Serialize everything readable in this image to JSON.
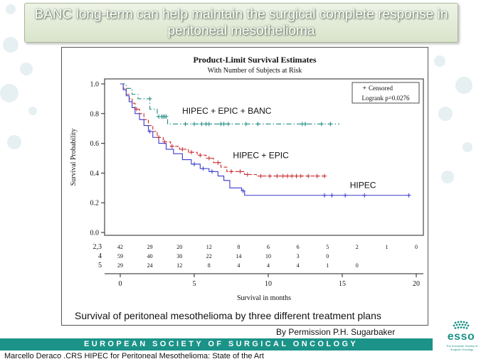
{
  "slide": {
    "title": "BANC long-term can help maintain the surgical complete response in peritoneal mesothelioma",
    "caption": "Survival of peritoneal mesothelioma by three different treatment plans",
    "permission": "By Permission P.H. Sugarbaker",
    "society_bar": "European Society of Surgical Oncology",
    "footer": "Marcello Deraco .CRS HIPEC for Peritoneal Mesothelioma: State of the Art",
    "logo": {
      "word": "esso",
      "subtitle": "The European Society of Surgical Oncology"
    }
  },
  "colors": {
    "banc": "#1f8c84",
    "epic": "#c8282d",
    "hipec": "#3a3acc",
    "accent": "#1b9388"
  },
  "chart_data": {
    "type": "line",
    "step": true,
    "title": "Product-Limit Survival Estimates",
    "subtitle": "With Number of Subjects at Risk",
    "xlabel": "Survival in months",
    "ylabel": "Survival Probability",
    "xlim": [
      0,
      20
    ],
    "ylim": [
      0,
      1
    ],
    "xticks": [
      0,
      5,
      10,
      15,
      20
    ],
    "yticks": [
      0.0,
      0.2,
      0.4,
      0.6,
      0.8,
      1.0
    ],
    "legend": {
      "symbol": "+",
      "label": "Censored",
      "stat": "Logrank p=0.0276",
      "placement": "top-right"
    },
    "series": [
      {
        "name": "HIPEC + EPIC + BANC",
        "color": "#1f8c84",
        "dash": "dash-dot",
        "steps": [
          [
            0,
            1.0
          ],
          [
            0.4,
            0.97
          ],
          [
            0.8,
            0.93
          ],
          [
            1.2,
            0.9
          ],
          [
            2.0,
            0.83
          ],
          [
            2.5,
            0.78
          ],
          [
            3.2,
            0.73
          ]
        ],
        "end_x": 14.8,
        "censored": [
          [
            2.0,
            0.9
          ],
          [
            2.6,
            0.78
          ],
          [
            2.8,
            0.78
          ],
          [
            2.9,
            0.78
          ],
          [
            3.0,
            0.78
          ],
          [
            3.1,
            0.78
          ],
          [
            4.4,
            0.73
          ],
          [
            5.0,
            0.73
          ],
          [
            5.5,
            0.73
          ],
          [
            5.8,
            0.73
          ],
          [
            6.0,
            0.73
          ],
          [
            6.8,
            0.73
          ],
          [
            7.0,
            0.73
          ],
          [
            7.3,
            0.73
          ],
          [
            8.5,
            0.73
          ],
          [
            9.3,
            0.73
          ],
          [
            12.3,
            0.73
          ],
          [
            12.5,
            0.73
          ],
          [
            13.6,
            0.73
          ],
          [
            14.2,
            0.73
          ]
        ]
      },
      {
        "name": "HIPEC + EPIC",
        "color": "#c8282d",
        "dash": "dash",
        "steps": [
          [
            0,
            1.0
          ],
          [
            0.2,
            0.97
          ],
          [
            0.4,
            0.93
          ],
          [
            0.6,
            0.9
          ],
          [
            0.8,
            0.87
          ],
          [
            1.0,
            0.83
          ],
          [
            1.3,
            0.8
          ],
          [
            1.6,
            0.76
          ],
          [
            1.9,
            0.72
          ],
          [
            2.2,
            0.68
          ],
          [
            2.5,
            0.64
          ],
          [
            2.9,
            0.61
          ],
          [
            3.4,
            0.58
          ],
          [
            4.0,
            0.56
          ],
          [
            4.6,
            0.54
          ],
          [
            5.2,
            0.52
          ],
          [
            5.8,
            0.5
          ],
          [
            6.3,
            0.47
          ],
          [
            6.8,
            0.44
          ],
          [
            7.2,
            0.41
          ],
          [
            8.4,
            0.39
          ],
          [
            9.2,
            0.38
          ]
        ],
        "end_x": 13.8,
        "censored": [
          [
            1.1,
            0.83
          ],
          [
            2.6,
            0.64
          ],
          [
            3.0,
            0.61
          ],
          [
            3.5,
            0.58
          ],
          [
            4.2,
            0.56
          ],
          [
            4.8,
            0.54
          ],
          [
            5.4,
            0.52
          ],
          [
            6.0,
            0.5
          ],
          [
            6.6,
            0.47
          ],
          [
            7.5,
            0.41
          ],
          [
            8.1,
            0.41
          ],
          [
            8.6,
            0.39
          ],
          [
            9.5,
            0.38
          ],
          [
            10.1,
            0.38
          ],
          [
            10.6,
            0.38
          ],
          [
            11.0,
            0.38
          ],
          [
            11.3,
            0.38
          ],
          [
            11.6,
            0.38
          ],
          [
            11.9,
            0.38
          ],
          [
            12.2,
            0.38
          ],
          [
            12.7,
            0.38
          ],
          [
            13.3,
            0.38
          ],
          [
            13.8,
            0.38
          ]
        ]
      },
      {
        "name": "HIPEC",
        "color": "#3a3acc",
        "dash": "solid",
        "steps": [
          [
            0,
            1.0
          ],
          [
            0.2,
            0.96
          ],
          [
            0.4,
            0.92
          ],
          [
            0.6,
            0.88
          ],
          [
            0.8,
            0.84
          ],
          [
            1.0,
            0.8
          ],
          [
            1.3,
            0.76
          ],
          [
            1.6,
            0.72
          ],
          [
            1.9,
            0.68
          ],
          [
            2.2,
            0.64
          ],
          [
            2.6,
            0.6
          ],
          [
            3.1,
            0.56
          ],
          [
            3.6,
            0.53
          ],
          [
            4.2,
            0.49
          ],
          [
            4.8,
            0.46
          ],
          [
            5.4,
            0.43
          ],
          [
            6.0,
            0.41
          ],
          [
            6.6,
            0.38
          ],
          [
            7.0,
            0.35
          ],
          [
            7.4,
            0.3
          ],
          [
            8.2,
            0.28
          ],
          [
            8.4,
            0.25
          ]
        ],
        "end_x": 19.5,
        "censored": [
          [
            2.0,
            0.68
          ],
          [
            5.0,
            0.46
          ],
          [
            5.6,
            0.43
          ],
          [
            6.2,
            0.41
          ],
          [
            8.3,
            0.28
          ],
          [
            13.8,
            0.25
          ],
          [
            14.3,
            0.25
          ],
          [
            15.2,
            0.25
          ],
          [
            16.5,
            0.25
          ],
          [
            19.5,
            0.25
          ]
        ]
      }
    ],
    "series_labels": [
      {
        "text": "HIPEC + EPIC + BANC",
        "x": 7.2,
        "y": 0.8
      },
      {
        "text": "HIPEC + EPIC",
        "x": 9.5,
        "y": 0.5
      },
      {
        "text": "HIPEC",
        "x": 16.4,
        "y": 0.3
      }
    ],
    "at_risk": {
      "times": [
        0,
        2,
        4,
        6,
        8,
        10,
        12,
        14,
        16,
        18,
        20
      ],
      "rows": [
        {
          "label": "2,3",
          "values": [
            "42",
            "29",
            "20",
            "12",
            "8",
            "6",
            "6",
            "5",
            "2",
            "1",
            "0"
          ]
        },
        {
          "label": "4",
          "values": [
            "59",
            "40",
            "30",
            "22",
            "14",
            "10",
            "3",
            "0",
            "",
            "",
            ""
          ]
        },
        {
          "label": "5",
          "values": [
            "29",
            "24",
            "12",
            "8",
            "4",
            "4",
            "4",
            "1",
            "0",
            "",
            ""
          ]
        }
      ]
    }
  }
}
